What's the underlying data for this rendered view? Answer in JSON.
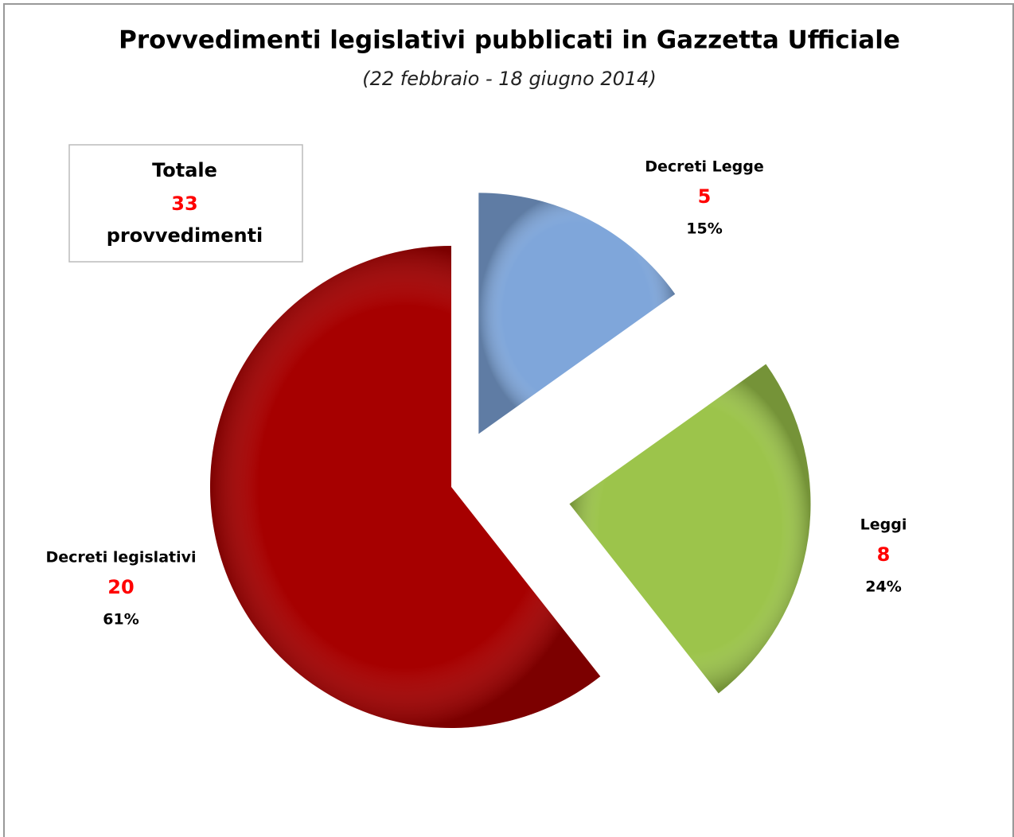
{
  "chart_data": {
    "type": "pie",
    "title": "Provvedimenti legislativi pubblicati in Gazzetta Ufficiale",
    "subtitle": "(22 febbraio - 18 giugno 2014)",
    "categories": [
      "Decreti Legge",
      "Leggi",
      "Decreti legislativi"
    ],
    "values": [
      5,
      8,
      20
    ],
    "percent_labels": [
      "15%",
      "24%",
      "61%"
    ],
    "colors": [
      "#7fa6da",
      "#9cc44b",
      "#a60000"
    ],
    "total": {
      "label": "Totale",
      "value": 33,
      "unit": "provvedimenti"
    }
  }
}
